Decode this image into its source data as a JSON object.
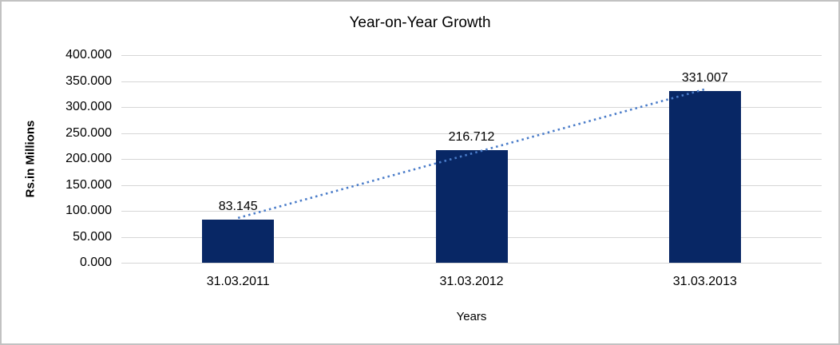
{
  "chart_data": {
    "type": "bar",
    "title": "Year-on-Year Growth",
    "xlabel": "Years",
    "ylabel": "Rs.in Millions",
    "categories": [
      "31.03.2011",
      "31.03.2012",
      "31.03.2013"
    ],
    "values": [
      83.145,
      216.712,
      331.007
    ],
    "data_labels": [
      "83.145",
      "216.712",
      "331.007"
    ],
    "yticks": [
      "400.000",
      "350.000",
      "300.000",
      "250.000",
      "200.000",
      "150.000",
      "100.000",
      "50.000",
      "0.000"
    ],
    "ylim": [
      0,
      400
    ],
    "grid": true,
    "legend": "none",
    "bar_color": "#082765",
    "gridline_color": "#d6d6d6",
    "frame_color": "#c2c2c2",
    "trendline": {
      "type": "linear",
      "style": "dotted",
      "color": "#4a7cc9"
    }
  }
}
